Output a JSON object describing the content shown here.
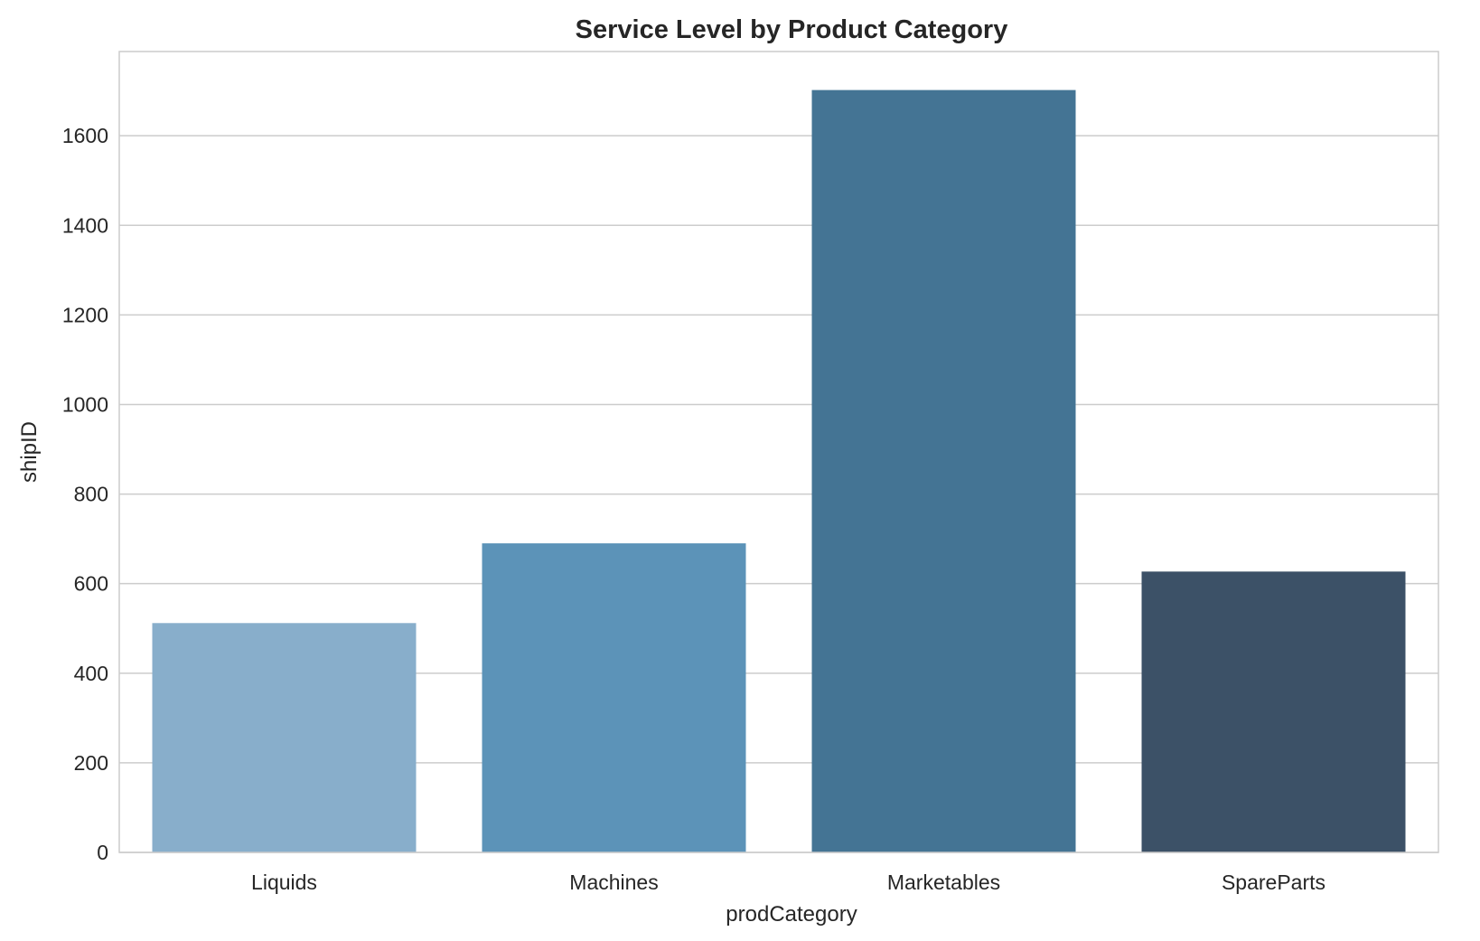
{
  "chart_data": {
    "type": "bar",
    "title": "Service Level by Product Category",
    "xlabel": "prodCategory",
    "ylabel": "shipID",
    "categories": [
      "Liquids",
      "Machines",
      "Marketables",
      "SpareParts"
    ],
    "values": [
      512,
      690,
      1702,
      627
    ],
    "colors": [
      "#88aecb",
      "#5c93b8",
      "#447494",
      "#3c5167"
    ],
    "ylim": [
      0,
      1788
    ],
    "yticks": [
      0,
      200,
      400,
      600,
      800,
      1000,
      1200,
      1400,
      1600
    ],
    "ytick_labels": [
      "0",
      "200",
      "400",
      "600",
      "800",
      "1000",
      "1200",
      "1400",
      "1600"
    ],
    "grid": true,
    "grid_color": "#cccccc",
    "spine_color": "#cccccc"
  }
}
